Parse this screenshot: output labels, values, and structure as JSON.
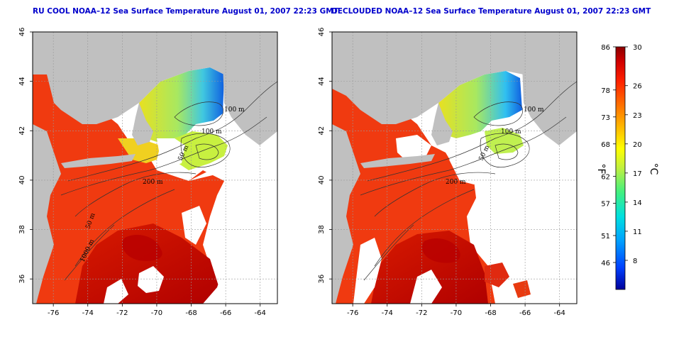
{
  "panels": [
    {
      "id": "left",
      "title": "RU COOL NOAA–12 Sea Surface Temperature August 01, 2007 22:23 GMT",
      "contour_labels": [
        "100 m",
        "100 m",
        "50 m",
        "200 m",
        "50 m",
        "1000 m"
      ],
      "cloud_cover": "partial"
    },
    {
      "id": "right",
      "title": "DECLOUDED NOAA–12 Sea Surface Temperature August 01, 2007 22:23 GMT",
      "contour_labels": [
        "100 m",
        "100 m",
        "50 m",
        "200 m"
      ],
      "cloud_cover": "declouded"
    }
  ],
  "axes": {
    "x_ticks": [
      "-76",
      "-74",
      "-72",
      "-70",
      "-68",
      "-66",
      "-64"
    ],
    "y_ticks": [
      "46",
      "44",
      "42",
      "40",
      "38",
      "36"
    ],
    "x_range": [
      -77.2,
      -63.0
    ],
    "y_range": [
      35.0,
      46.0
    ]
  },
  "colorbar": {
    "fahrenheit_ticks": [
      "86",
      "78",
      "73",
      "68",
      "62",
      "57",
      "51",
      "46"
    ],
    "celsius_ticks": [
      "30",
      "26",
      "23",
      "20",
      "17",
      "14",
      "11",
      "8"
    ],
    "fahrenheit_unit": "°F",
    "celsius_unit": "°C",
    "range_c": [
      5,
      30
    ],
    "colors": [
      "#00009a",
      "#0040ff",
      "#00a0ff",
      "#00e0e0",
      "#40f080",
      "#c0f040",
      "#ffff00",
      "#ffc000",
      "#ff7000",
      "#ff2000",
      "#d00000",
      "#8b0000"
    ]
  },
  "colors": {
    "land": "#c0c0c0",
    "cloud": "#ffffff",
    "title": "#0000cc"
  }
}
